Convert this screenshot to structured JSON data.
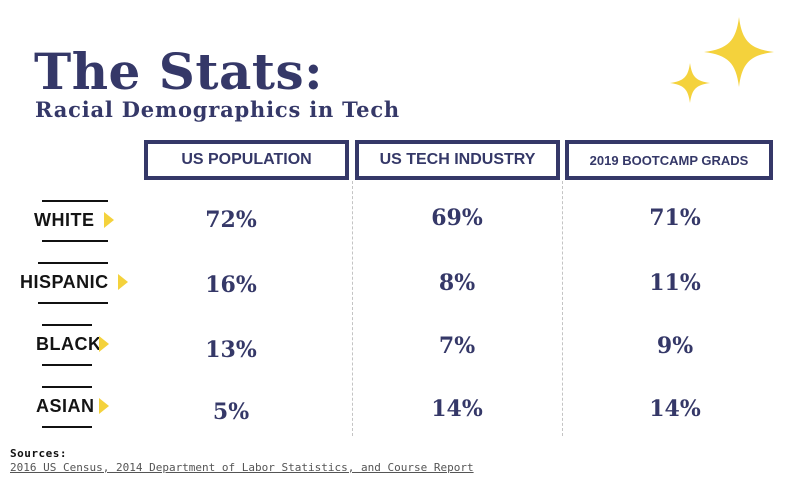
{
  "header": {
    "title": "The Stats:",
    "subtitle": "Racial Demographics in Tech"
  },
  "colors": {
    "navy": "#353868",
    "accent_yellow": "#f4d23c",
    "divider_gray": "#c4c4c4"
  },
  "decor": {
    "sparkle_icon": "four-point-star-icon"
  },
  "chart_data": {
    "type": "table",
    "title": "The Stats:",
    "subtitle": "Racial Demographics in Tech",
    "columns": [
      "US POPULATION",
      "US TECH INDUSTRY",
      "2019 BOOTCAMP GRADS"
    ],
    "rows": [
      {
        "label": "WHITE",
        "values": [
          "72%",
          "69%",
          "71%"
        ]
      },
      {
        "label": "HISPANIC",
        "values": [
          "16%",
          "8%",
          "11%"
        ]
      },
      {
        "label": "BLACK",
        "values": [
          "13%",
          "7%",
          "9%"
        ]
      },
      {
        "label": "ASIAN",
        "values": [
          "5%",
          "14%",
          "14%"
        ]
      }
    ]
  },
  "footer": {
    "sources_label": "Sources:",
    "sources_text": "2016 US Census, 2014 Department of Labor Statistics, and Course Report"
  }
}
